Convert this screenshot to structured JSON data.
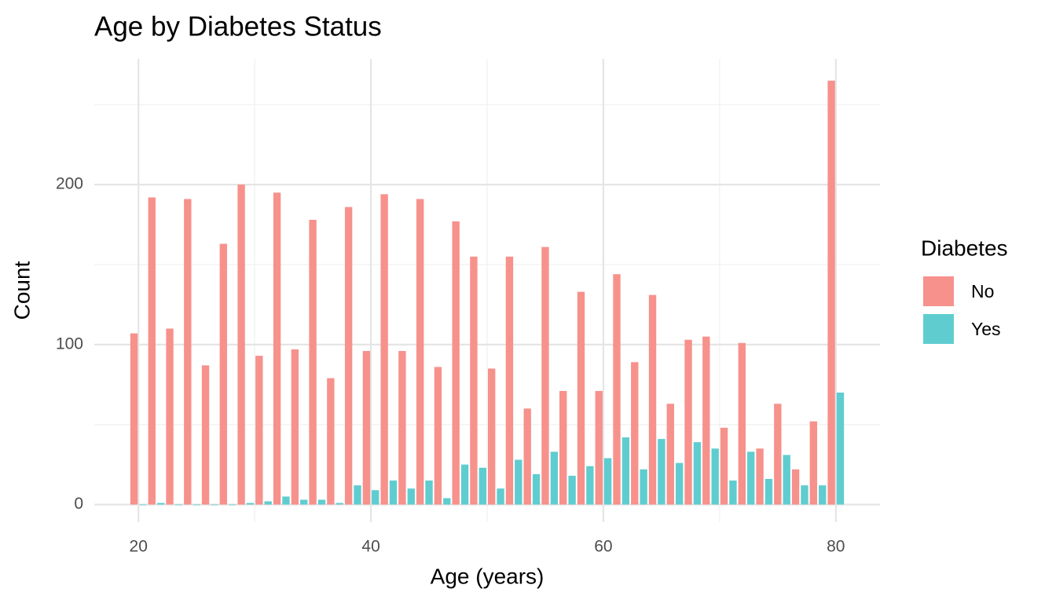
{
  "chart_data": {
    "type": "histogram",
    "title": "Age by Diabetes Status",
    "x_label": "Age (years)",
    "y_label": "Count",
    "legend_title": "Diabetes",
    "legend_position": "right",
    "bins": [
      19.231,
      20.769,
      22.308,
      23.846,
      25.385,
      26.923,
      28.462,
      30.0,
      31.538,
      33.077,
      34.615,
      36.154,
      37.692,
      39.231,
      40.769,
      42.308,
      43.846,
      45.385,
      46.923,
      48.462,
      50.0,
      51.538,
      53.077,
      54.615,
      56.154,
      57.692,
      59.231,
      60.769,
      62.308,
      63.846,
      65.385,
      66.923,
      68.462,
      70.0,
      71.538,
      73.077,
      74.615,
      76.154,
      77.692,
      79.231,
      80.769
    ],
    "series": [
      {
        "name": "No",
        "color": "#f7918c",
        "values": [
          107,
          192,
          110,
          191,
          87,
          163,
          200,
          93,
          195,
          97,
          178,
          79,
          186,
          96,
          194,
          96,
          191,
          86,
          177,
          155,
          85,
          155,
          60,
          161,
          71,
          133,
          71,
          144,
          89,
          131,
          63,
          103,
          105,
          48,
          101,
          35,
          63,
          22,
          52,
          265
        ]
      },
      {
        "name": "Yes",
        "color": "#5fcdd0",
        "values": [
          0,
          1,
          0,
          0,
          0,
          0,
          1,
          2,
          5,
          3,
          3,
          1,
          12,
          9,
          15,
          10,
          15,
          4,
          25,
          23,
          10,
          28,
          19,
          33,
          18,
          24,
          29,
          42,
          22,
          41,
          26,
          39,
          35,
          15,
          33,
          16,
          31,
          12,
          12,
          70
        ]
      }
    ],
    "xlim": [
      16.2,
      83.8
    ],
    "ylim": [
      -11,
      278.6
    ],
    "xticks": [
      20,
      40,
      60,
      80
    ],
    "yticks": [
      0,
      100,
      200
    ],
    "x_minor_ticks": [
      30,
      50,
      70
    ],
    "y_minor_ticks": [
      50,
      150,
      250
    ],
    "grid": true
  }
}
